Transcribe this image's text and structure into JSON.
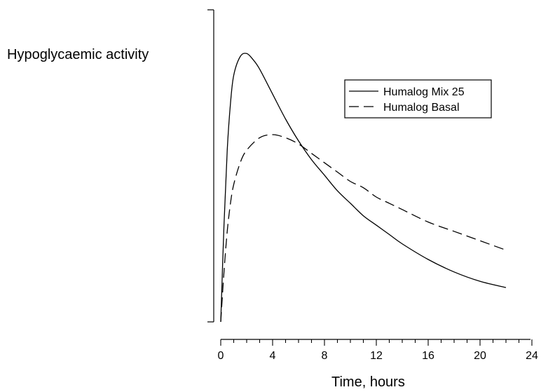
{
  "chart_data": {
    "type": "line",
    "title": "",
    "xlabel": "Time, hours",
    "ylabel": "Hypoglycaemic activity",
    "xlim": [
      0,
      24
    ],
    "xticks": [
      0,
      4,
      8,
      12,
      16,
      20,
      24
    ],
    "xtick_labels": [
      "0",
      "4",
      "8",
      "12",
      "16",
      "20",
      "24"
    ],
    "ylim": [
      0,
      1
    ],
    "y_tick_labels_shown": false,
    "grid": false,
    "legend_position": "top-right",
    "series": [
      {
        "name": "Humalog Mix 25",
        "style": "solid",
        "x": [
          0,
          0.25,
          0.5,
          0.75,
          1,
          1.5,
          2,
          2.5,
          3,
          4,
          5,
          6,
          7,
          8,
          9,
          10,
          11,
          12,
          13,
          14,
          16,
          18,
          20,
          22
        ],
        "y": [
          0,
          0.31,
          0.55,
          0.7,
          0.79,
          0.85,
          0.86,
          0.84,
          0.81,
          0.73,
          0.65,
          0.58,
          0.52,
          0.47,
          0.42,
          0.38,
          0.34,
          0.31,
          0.28,
          0.25,
          0.2,
          0.16,
          0.13,
          0.11
        ]
      },
      {
        "name": "Humalog Basal",
        "style": "dashed",
        "x": [
          0,
          0.25,
          0.5,
          0.75,
          1,
          1.5,
          2,
          3,
          4,
          5,
          6,
          7,
          8,
          9,
          10,
          11,
          12,
          13,
          14,
          16,
          18,
          20,
          22
        ],
        "y": [
          0,
          0.16,
          0.29,
          0.38,
          0.44,
          0.51,
          0.55,
          0.59,
          0.6,
          0.59,
          0.57,
          0.54,
          0.51,
          0.48,
          0.45,
          0.43,
          0.4,
          0.38,
          0.36,
          0.32,
          0.29,
          0.26,
          0.23
        ]
      }
    ]
  }
}
